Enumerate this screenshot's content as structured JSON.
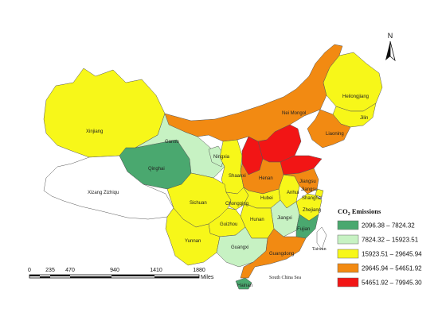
{
  "colors": {
    "class1": "#4aa86f",
    "class2": "#c7f2c3",
    "class3": "#f7f719",
    "class4": "#f28a12",
    "class5": "#f21515",
    "none": "#ffffff"
  },
  "legend": {
    "title_main": "CO",
    "title_sub": "2",
    "title_rest": " Emissions",
    "items": [
      {
        "label": "2096.38 – 7824.32",
        "color": "#4aa86f"
      },
      {
        "label": "7824.32 – 15923.51",
        "color": "#c7f2c3"
      },
      {
        "label": "15923.51 – 29645.94",
        "color": "#f7f719"
      },
      {
        "label": "29645.94 – 54651.92",
        "color": "#f28a12"
      },
      {
        "label": "54651.92 – 79945.30",
        "color": "#f21515"
      }
    ]
  },
  "north_arrow": {
    "letter": "N"
  },
  "scale_bar": {
    "ticks": [
      "0",
      "235",
      "470",
      "940",
      "1410",
      "1880"
    ],
    "unit": "Miles"
  },
  "regions": {
    "xinjiang": "Xinjiang",
    "xizang": "Xizang Zizhiqu",
    "qinghai": "Qinghai",
    "gansu": "Gansu",
    "neimongol": "Nei Mongol",
    "heilongjiang": "Heilongjiang",
    "jilin": "Jilin",
    "liaoning": "Liaoning",
    "ningxia": "Ningxia",
    "shaanxi": "Shaanxi",
    "sichuan": "Sichuan",
    "chongqing": "Chongqing",
    "hubei": "Hubei",
    "anhui": "Anhui",
    "jiangsu": "Jiangsu",
    "shanghai": "Shanghai",
    "zhejiang": "Zhejiang",
    "jiangxi": "Jiangxi",
    "hunan": "Hunan",
    "guizhou": "Guizhou",
    "yunnan": "Yunnan",
    "guangxi": "Guangxi",
    "guangdong": "Guangdong",
    "fujian": "Fujian",
    "hainan": "Hainan",
    "taiwan": "Taiwan",
    "henan": "Henan",
    "south_china_sea": "South China Sea"
  }
}
